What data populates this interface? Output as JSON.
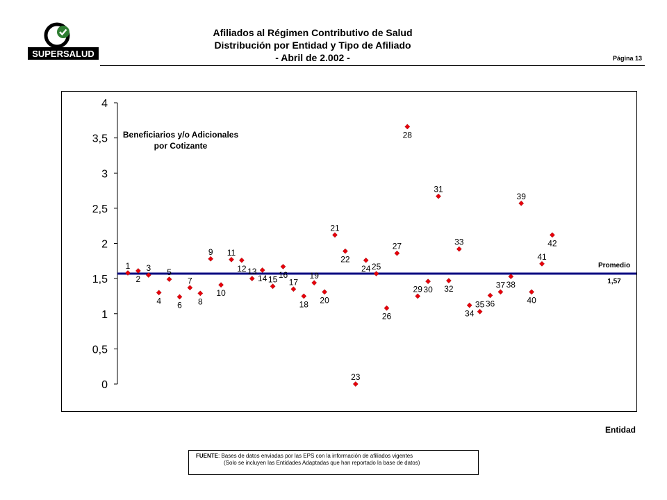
{
  "header": {
    "title_line1": "Afiliados al Régimen Contributivo de Salud",
    "title_line2": "Distribución por Entidad y Tipo de Afiliado",
    "title_line3": "- Abril de 2.002 -",
    "page_label": "Página 13"
  },
  "logo": {
    "text": "SUPERSALUD",
    "icon": "checkmark-circle-logo"
  },
  "footer": {
    "source_label": "FUENTE",
    "source_text": ": Bases de datos enviadas por las EPS con la información de afiliados vigentes",
    "note_text": "(Solo se incluyen las Entidades Adaptadas que han reportado la base de datos)"
  },
  "colors": {
    "marker": "#e8000b",
    "average_line": "#000080",
    "axis": "#000000"
  },
  "chart_data": {
    "type": "scatter",
    "title": "Beneficiarios y/o Adicionales por Cotizante",
    "title_line1": "Beneficiarios y/o Adicionales",
    "title_line2": "por Cotizante",
    "xlabel": "Entidad",
    "ylabel": "",
    "ylim": [
      0,
      4
    ],
    "yticks": [
      "0",
      "0,5",
      "1",
      "1,5",
      "2",
      "2,5",
      "3",
      "3,5",
      "4"
    ],
    "grid": false,
    "average": {
      "label": "Promedio",
      "value": 1.57,
      "value_label": "1,57"
    },
    "x": [
      1,
      2,
      3,
      4,
      5,
      6,
      7,
      8,
      9,
      10,
      11,
      12,
      13,
      14,
      15,
      16,
      17,
      18,
      19,
      20,
      21,
      22,
      23,
      24,
      25,
      26,
      27,
      28,
      29,
      30,
      31,
      32,
      33,
      34,
      35,
      36,
      37,
      38,
      39,
      40,
      41,
      42
    ],
    "y": [
      1.58,
      1.61,
      1.55,
      1.3,
      1.49,
      1.24,
      1.37,
      1.29,
      1.78,
      1.41,
      1.77,
      1.76,
      1.5,
      1.62,
      1.39,
      1.67,
      1.35,
      1.25,
      1.44,
      1.31,
      2.12,
      1.89,
      0.0,
      1.76,
      1.57,
      1.08,
      1.86,
      3.66,
      1.25,
      1.46,
      2.67,
      1.47,
      1.92,
      1.12,
      1.03,
      1.26,
      1.31,
      1.53,
      2.57,
      1.31,
      1.71,
      2.12
    ]
  }
}
